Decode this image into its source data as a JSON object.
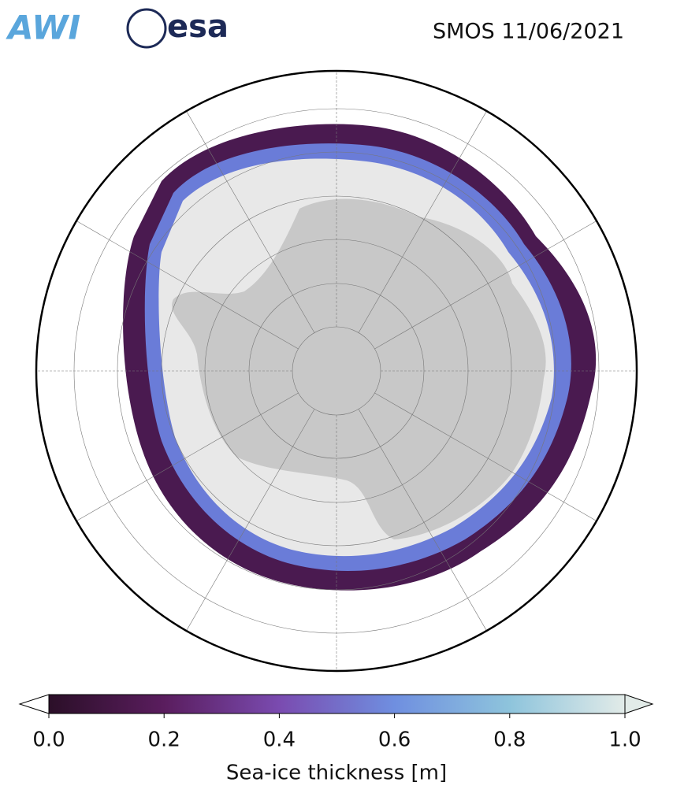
{
  "header": {
    "logos": [
      "AWI",
      "esa"
    ],
    "title": "SMOS 11/06/2021"
  },
  "colorbar": {
    "label": "Sea-ice thickness [m]",
    "lim": [
      0,
      1
    ],
    "ticks": [
      {
        "value": 0,
        "label": "0.0"
      },
      0.2,
      0.4,
      0.6,
      0.8,
      {
        "value": 1,
        "label": "1.0"
      }
    ],
    "colors": [
      "#2b0f28",
      "#5a1d5e",
      "#7a4bb0",
      "#6f8fe0",
      "#8ec4dc",
      "#e2ebe8"
    ]
  }
}
